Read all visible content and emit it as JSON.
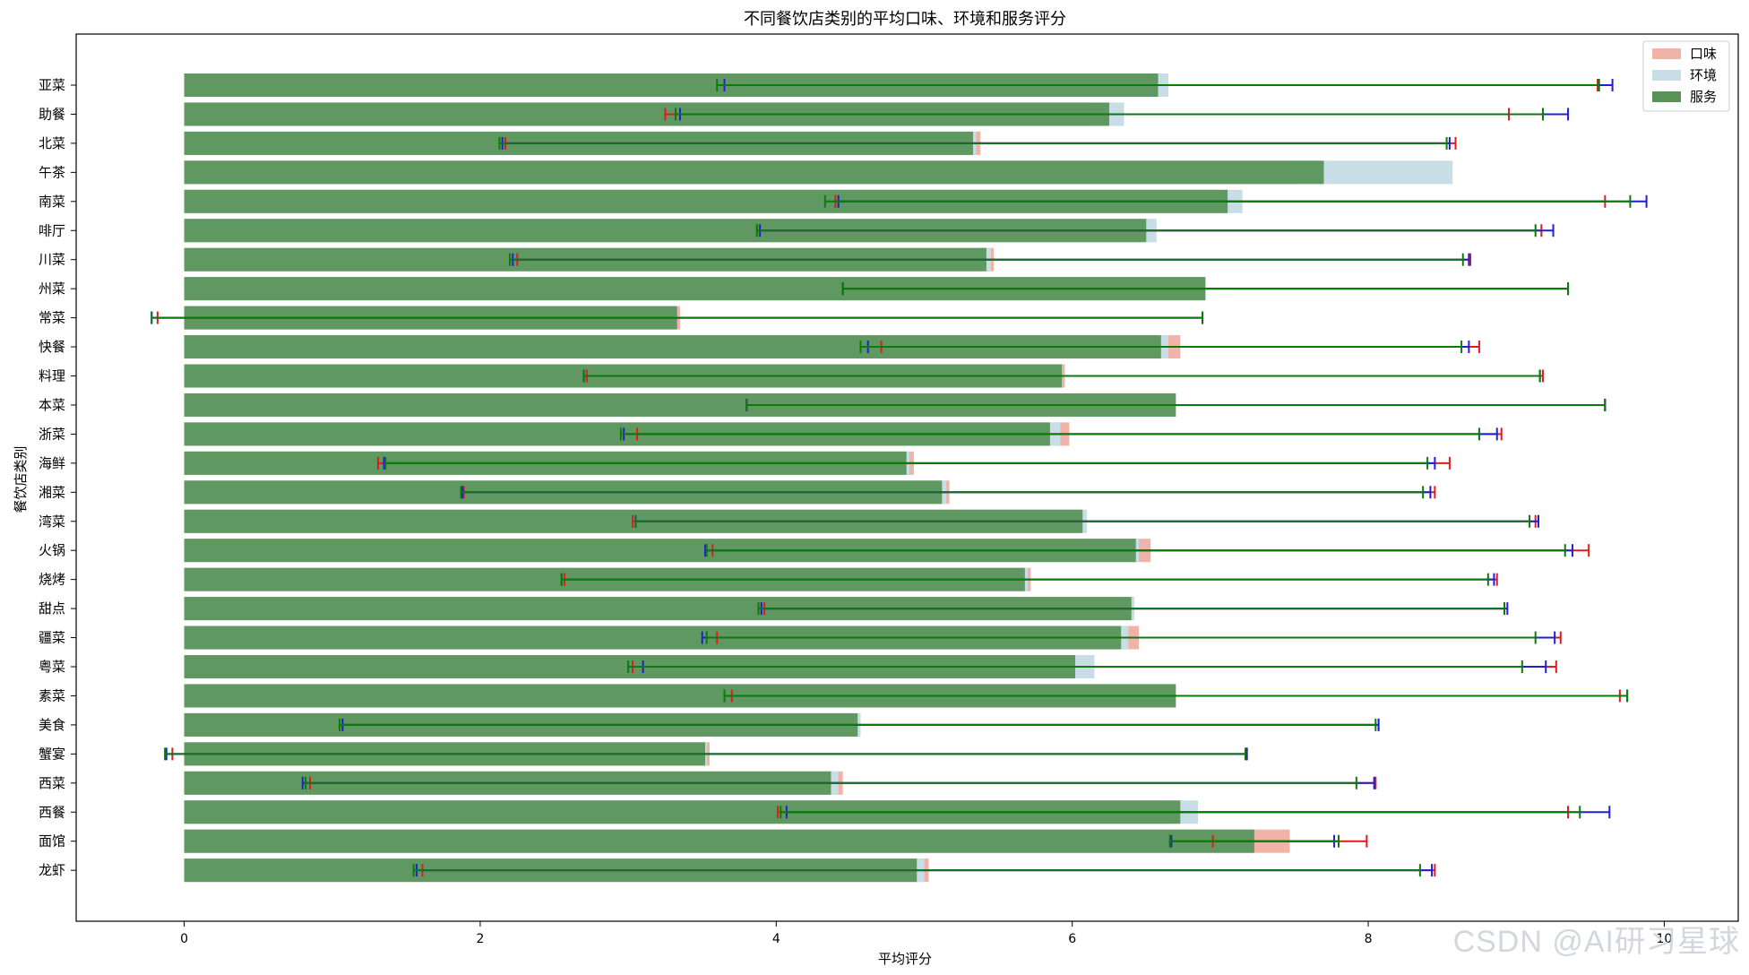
{
  "chart_data": {
    "type": "bar",
    "orientation": "horizontal",
    "title": "不同餐饮店类别的平均口味、环境和服务评分",
    "xlabel": "平均评分",
    "ylabel": "餐饮店类别",
    "xlim": [
      -0.73,
      10.5
    ],
    "xticks": [
      0,
      2,
      4,
      6,
      8,
      10
    ],
    "grid": false,
    "legend_position": "top-right",
    "categories": [
      "亚菜",
      "助餐",
      "北菜",
      "午茶",
      "南菜",
      "啡厅",
      "川菜",
      "州菜",
      "常菜",
      "快餐",
      "料理",
      "本菜",
      "浙菜",
      "海鲜",
      "湘菜",
      "湾菜",
      "火锅",
      "烧烤",
      "甜点",
      "疆菜",
      "粤菜",
      "素菜",
      "美食",
      "蟹宴",
      "西菜",
      "西餐",
      "面馆",
      "龙虾"
    ],
    "series": [
      {
        "name": "口味",
        "color": "#f1b3a7",
        "errorbar_color": "#e41a1c",
        "values": [
          6.6,
          6.1,
          5.38,
          7.5,
          7.0,
          6.52,
          5.47,
          6.9,
          3.35,
          6.73,
          5.95,
          6.7,
          5.98,
          4.93,
          5.17,
          6.08,
          6.53,
          5.72,
          6.42,
          6.45,
          6.15,
          6.7,
          4.57,
          3.55,
          4.45,
          6.68,
          7.47,
          5.03
        ],
        "errors": [
          2.95,
          2.85,
          3.21,
          0.0,
          2.6,
          2.65,
          3.22,
          2.45,
          3.53,
          2.02,
          3.23,
          2.9,
          2.92,
          3.62,
          3.28,
          3.05,
          2.96,
          3.15,
          2.5,
          2.85,
          3.12,
          3.0,
          3.5,
          3.63,
          3.6,
          2.67,
          0.52,
          3.42
        ]
      },
      {
        "name": "环境",
        "color": "#c8dde5",
        "errorbar_color": "#1f1fd6",
        "values": [
          6.65,
          6.35,
          5.35,
          8.57,
          7.15,
          6.57,
          5.45,
          6.9,
          3.33,
          6.65,
          5.93,
          6.7,
          5.92,
          4.9,
          5.15,
          6.1,
          6.45,
          5.7,
          6.42,
          6.38,
          6.15,
          6.7,
          4.57,
          3.53,
          4.42,
          6.85,
          7.22,
          5.0
        ],
        "errors": [
          3.0,
          3.0,
          3.2,
          0.0,
          2.73,
          2.68,
          3.23,
          2.45,
          3.55,
          2.03,
          3.23,
          2.9,
          2.95,
          3.55,
          3.27,
          3.05,
          2.93,
          3.15,
          2.52,
          2.88,
          3.05,
          3.05,
          3.5,
          3.65,
          3.62,
          2.78,
          0.55,
          3.43
        ]
      },
      {
        "name": "服务",
        "color": "#5a9358",
        "errorbar_color": "#0c7a0c",
        "values": [
          6.58,
          6.25,
          5.33,
          7.7,
          7.05,
          6.5,
          5.42,
          6.9,
          3.33,
          6.6,
          5.93,
          6.7,
          5.85,
          4.88,
          5.12,
          6.07,
          6.43,
          5.68,
          6.4,
          6.33,
          6.02,
          6.7,
          4.55,
          3.52,
          4.37,
          6.73,
          7.23,
          4.95
        ],
        "errors": [
          2.98,
          2.93,
          3.2,
          0.0,
          2.72,
          2.63,
          3.22,
          2.45,
          3.55,
          2.03,
          3.23,
          2.9,
          2.9,
          3.52,
          3.25,
          3.02,
          2.9,
          3.13,
          2.52,
          2.8,
          3.02,
          3.05,
          3.5,
          3.65,
          3.55,
          2.7,
          0.57,
          3.4
        ]
      }
    ]
  },
  "watermark": "CSDN @AI研习星球"
}
